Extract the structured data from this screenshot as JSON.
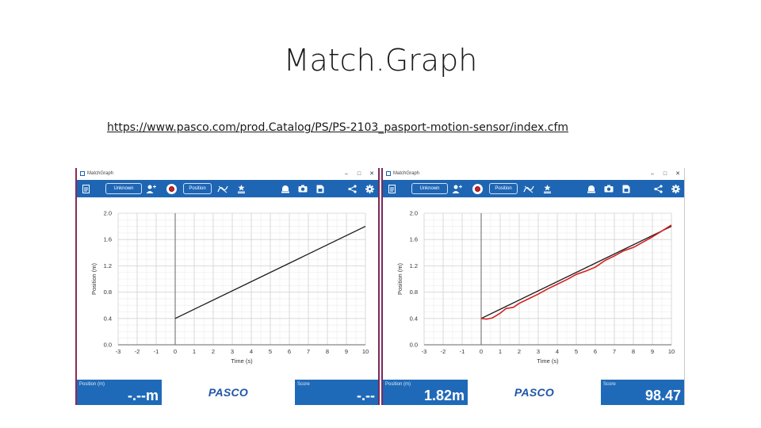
{
  "slide": {
    "title": "Match.Graph",
    "link": "https://www.pasco.com/prod.Catalog/PS/PS-2103_pasport-motion-sensor/index.cfm"
  },
  "colors": {
    "toolbar": "#1e66b4",
    "meter": "#1f6ab8",
    "target_line": "#1a1a1a",
    "student_line": "#d62020",
    "frame": "#7a2a5a"
  },
  "icons": [
    "journal-icon",
    "add-user-icon",
    "record-icon",
    "graph-options-icon",
    "calibrate-icon",
    "pasco-device-icon",
    "camera-icon",
    "save-icon",
    "share-icon",
    "settings-icon"
  ],
  "screens": [
    {
      "window_title": "MatchGraph",
      "toolbar": {
        "user_label": "Unknown",
        "measurement_label": "Position"
      },
      "footer": {
        "position_label": "Position (m)",
        "position_value": "-.--m",
        "brand": "PASCO",
        "score_label": "Score",
        "score_value": "-.--"
      },
      "chart_data": {
        "type": "line",
        "xlabel": "Time (s)",
        "ylabel": "Position (m)",
        "xlim": [
          -3,
          10
        ],
        "ylim": [
          0,
          2.0
        ],
        "x_ticks": [
          -3,
          -2,
          -1,
          0,
          1,
          2,
          3,
          4,
          5,
          6,
          7,
          8,
          9,
          10
        ],
        "y_ticks": [
          0.0,
          0.4,
          0.8,
          1.2,
          1.6,
          2.0
        ],
        "y_tick_labels": [
          "0.0",
          "0.4",
          "0.8",
          "1.2",
          "1.6",
          "2.0"
        ],
        "grid": true,
        "series": [
          {
            "role": "target",
            "color": "#1a1a1a",
            "x": [
              0,
              10
            ],
            "y": [
              0.4,
              1.8
            ]
          }
        ]
      }
    },
    {
      "window_title": "MatchGraph",
      "toolbar": {
        "user_label": "Unknown",
        "measurement_label": "Position"
      },
      "footer": {
        "position_label": "Position (m)",
        "position_value": "1.82m",
        "brand": "PASCO",
        "score_label": "Score",
        "score_value": "98.47"
      },
      "chart_data": {
        "type": "line",
        "xlabel": "Time (s)",
        "ylabel": "Position (m)",
        "xlim": [
          -3,
          10
        ],
        "ylim": [
          0,
          2.0
        ],
        "x_ticks": [
          -3,
          -2,
          -1,
          0,
          1,
          2,
          3,
          4,
          5,
          6,
          7,
          8,
          9,
          10
        ],
        "y_ticks": [
          0.0,
          0.4,
          0.8,
          1.2,
          1.6,
          2.0
        ],
        "y_tick_labels": [
          "0.0",
          "0.4",
          "0.8",
          "1.2",
          "1.6",
          "2.0"
        ],
        "grid": true,
        "series": [
          {
            "role": "target",
            "color": "#1a1a1a",
            "x": [
              0,
              10
            ],
            "y": [
              0.4,
              1.8
            ]
          },
          {
            "role": "measured",
            "color": "#d62020",
            "x": [
              0,
              0.3,
              0.6,
              1.0,
              1.3,
              1.7,
              2.0,
              2.5,
              3.0,
              3.5,
              4.0,
              4.5,
              5.0,
              5.5,
              6.0,
              6.5,
              7.0,
              7.5,
              8.0,
              8.5,
              9.0,
              9.5,
              10.0
            ],
            "y": [
              0.4,
              0.39,
              0.41,
              0.48,
              0.55,
              0.57,
              0.63,
              0.7,
              0.77,
              0.85,
              0.92,
              0.99,
              1.07,
              1.12,
              1.18,
              1.28,
              1.35,
              1.43,
              1.48,
              1.56,
              1.64,
              1.73,
              1.82
            ]
          }
        ]
      }
    }
  ]
}
